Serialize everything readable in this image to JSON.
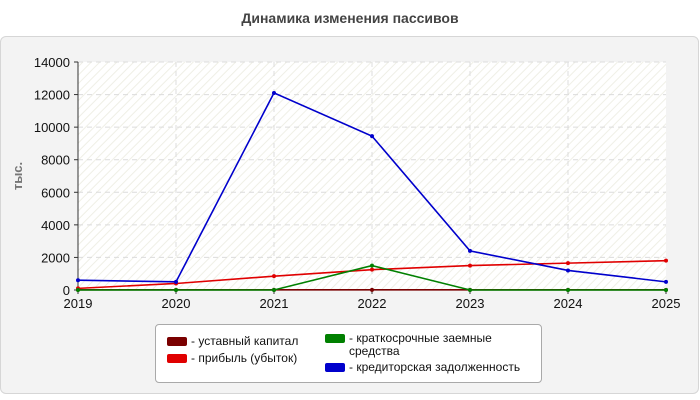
{
  "title": "Динамика изменения пассивов",
  "chart_data": {
    "type": "line",
    "title": "Динамика изменения пассивов",
    "xlabel": "",
    "ylabel": "тыс.",
    "x": [
      "2019",
      "2020",
      "2021",
      "2022",
      "2023",
      "2024",
      "2025"
    ],
    "ylim": [
      0,
      14000
    ],
    "yticks": [
      0,
      2000,
      4000,
      6000,
      8000,
      10000,
      12000,
      14000
    ],
    "grid": true,
    "legend_position": "bottom",
    "series": [
      {
        "name": "уставный капитал",
        "color": "#7a0000",
        "values": [
          10,
          10,
          10,
          10,
          10,
          10,
          10
        ]
      },
      {
        "name": "прибыль (убыток)",
        "color": "#e00000",
        "values": [
          100,
          400,
          850,
          1250,
          1500,
          1650,
          1800
        ]
      },
      {
        "name": "краткосрочные заемные средства",
        "color": "#008000",
        "values": [
          0,
          0,
          0,
          1500,
          0,
          0,
          0
        ]
      },
      {
        "name": "кредиторская задолженность",
        "color": "#0000cc",
        "values": [
          600,
          500,
          12100,
          9450,
          2400,
          1200,
          500
        ]
      }
    ]
  },
  "legend": [
    {
      "label_line1": "- уставный капитал",
      "label_line2": "",
      "color": "#7a0000"
    },
    {
      "label_line1": "- прибыль (убыток)",
      "label_line2": "",
      "color": "#e00000"
    },
    {
      "label_line1": "- краткосрочные заемные",
      "label_line2": "средства",
      "color": "#008000"
    },
    {
      "label_line1": "- кредиторская задолженность",
      "label_line2": "",
      "color": "#0000cc"
    }
  ]
}
